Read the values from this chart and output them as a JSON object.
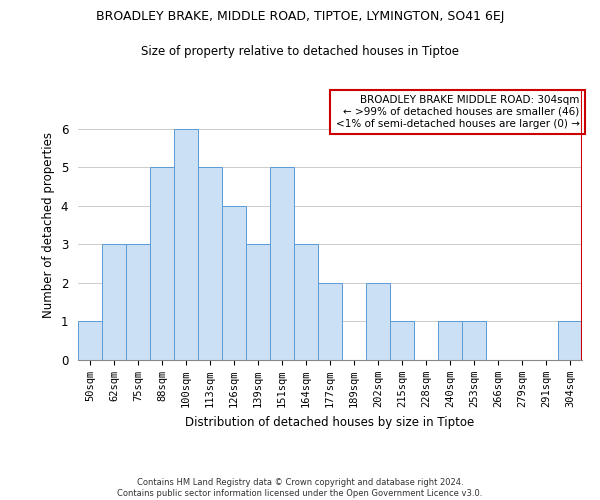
{
  "title": "BROADLEY BRAKE, MIDDLE ROAD, TIPTOE, LYMINGTON, SO41 6EJ",
  "subtitle": "Size of property relative to detached houses in Tiptoe",
  "xlabel": "Distribution of detached houses by size in Tiptoe",
  "ylabel": "Number of detached properties",
  "categories": [
    "50sqm",
    "62sqm",
    "75sqm",
    "88sqm",
    "100sqm",
    "113sqm",
    "126sqm",
    "139sqm",
    "151sqm",
    "164sqm",
    "177sqm",
    "189sqm",
    "202sqm",
    "215sqm",
    "228sqm",
    "240sqm",
    "253sqm",
    "266sqm",
    "279sqm",
    "291sqm",
    "304sqm"
  ],
  "values": [
    1,
    3,
    3,
    5,
    6,
    5,
    4,
    3,
    5,
    3,
    2,
    0,
    2,
    1,
    0,
    1,
    1,
    0,
    0,
    0,
    1
  ],
  "bar_color": "#cce0f5",
  "bar_edge_color": "#5b9bd5",
  "highlight_line_color": "#cc0000",
  "ylim": [
    0,
    7
  ],
  "yticks": [
    0,
    1,
    2,
    3,
    4,
    5,
    6
  ],
  "annotation_title": "BROADLEY BRAKE MIDDLE ROAD: 304sqm",
  "annotation_line1": "← >99% of detached houses are smaller (46)",
  "annotation_line2": "<1% of semi-detached houses are larger (0) →",
  "annotation_box_color": "#ffffff",
  "annotation_box_edge_color": "#cc0000",
  "footer1": "Contains HM Land Registry data © Crown copyright and database right 2024.",
  "footer2": "Contains public sector information licensed under the Open Government Licence v3.0.",
  "background_color": "#ffffff",
  "grid_color": "#cccccc"
}
